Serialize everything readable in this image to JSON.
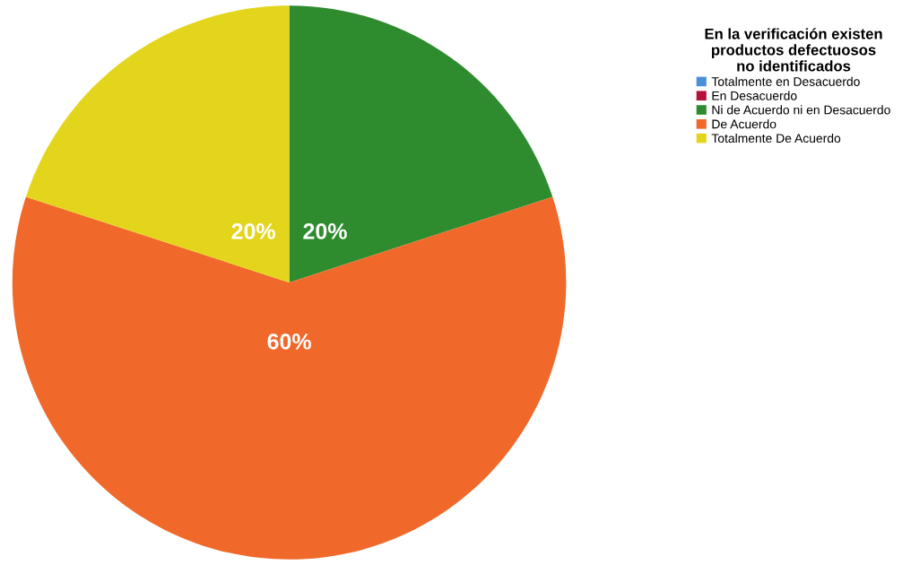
{
  "chart_data": {
    "type": "pie",
    "legend_title": "En la verificación existen\nproductos defectuosos\nno identificados",
    "categories": [
      "Totalmente en Desacuerdo",
      "En Desacuerdo",
      "Ni de Acuerdo ni en Desacuerdo",
      "De Acuerdo",
      "Totalmente De Acuerdo"
    ],
    "values": [
      0,
      0,
      20,
      60,
      20
    ],
    "value_labels": [
      null,
      null,
      "20%",
      "60%",
      "20%"
    ],
    "colors": [
      "#4a90d9",
      "#b5113a",
      "#2e8b2e",
      "#f0692a",
      "#e3d51c"
    ],
    "legend": "top right"
  }
}
